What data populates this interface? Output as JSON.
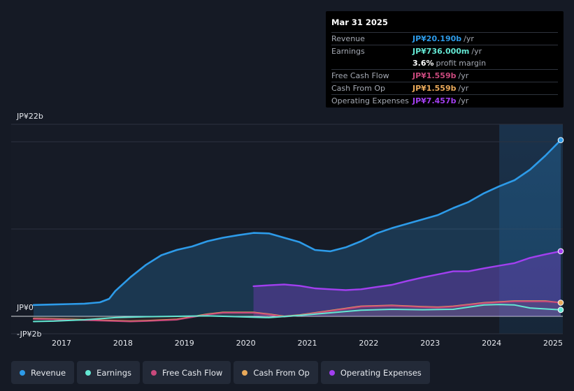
{
  "colors": {
    "revenue": "#2d9be9",
    "earnings": "#64e7d3",
    "free_cash_flow": "#c9497c",
    "cash_from_op": "#e9a95a",
    "operating_expenses": "#a23ff0"
  },
  "tooltip": {
    "date": "Mar 31 2025",
    "rows": [
      {
        "label": "Revenue",
        "value": "JP¥20.190b",
        "unit": "/yr",
        "color": "#2d9be9"
      },
      {
        "label": "Earnings",
        "value": "JP¥736.000m",
        "unit": "/yr",
        "color": "#64e7d3"
      },
      {
        "label": "",
        "value": "3.6%",
        "unit": "profit margin",
        "color": "#ffffff"
      },
      {
        "label": "Free Cash Flow",
        "value": "JP¥1.559b",
        "unit": "/yr",
        "color": "#c9497c"
      },
      {
        "label": "Cash From Op",
        "value": "JP¥1.559b",
        "unit": "/yr",
        "color": "#e9a95a"
      },
      {
        "label": "Operating Expenses",
        "value": "JP¥7.457b",
        "unit": "/yr",
        "color": "#a23ff0"
      }
    ]
  },
  "legend": [
    {
      "label": "Revenue",
      "color": "#2d9be9"
    },
    {
      "label": "Earnings",
      "color": "#64e7d3"
    },
    {
      "label": "Free Cash Flow",
      "color": "#c9497c"
    },
    {
      "label": "Cash From Op",
      "color": "#e9a95a"
    },
    {
      "label": "Operating Expenses",
      "color": "#a23ff0"
    }
  ],
  "chart_data": {
    "type": "area",
    "title": "",
    "xlabel": "",
    "ylabel": "",
    "unit": "JP¥ billions",
    "ylim": [
      -2,
      22
    ],
    "y_ticks": [
      {
        "value": 22,
        "label": "JP¥22b"
      },
      {
        "value": 0,
        "label": "JP¥0"
      },
      {
        "value": -2,
        "label": "-JP¥2b"
      }
    ],
    "xlim": [
      2016.67,
      2025.25
    ],
    "x_ticks": [
      {
        "value": 2017,
        "label": "2017"
      },
      {
        "value": 2018,
        "label": "2018"
      },
      {
        "value": 2019,
        "label": "2019"
      },
      {
        "value": 2020,
        "label": "2020"
      },
      {
        "value": 2021,
        "label": "2021"
      },
      {
        "value": 2022,
        "label": "2022"
      },
      {
        "value": 2023,
        "label": "2023"
      },
      {
        "value": 2024,
        "label": "2024"
      },
      {
        "value": 2025,
        "label": "2025"
      }
    ],
    "highlight_from": 2024.25,
    "series": [
      {
        "name": "Revenue",
        "key": "revenue",
        "x": [
          2016.67,
          2017.0,
          2017.25,
          2017.5,
          2017.75,
          2017.9,
          2018.0,
          2018.25,
          2018.5,
          2018.75,
          2019.0,
          2019.25,
          2019.5,
          2019.75,
          2020.0,
          2020.25,
          2020.5,
          2020.75,
          2021.0,
          2021.25,
          2021.5,
          2021.75,
          2022.0,
          2022.25,
          2022.5,
          2022.75,
          2023.0,
          2023.25,
          2023.5,
          2023.75,
          2024.0,
          2024.25,
          2024.5,
          2024.75,
          2025.0,
          2025.25
        ],
        "values": [
          1.3,
          1.35,
          1.4,
          1.45,
          1.6,
          2.0,
          2.9,
          4.5,
          5.9,
          7.0,
          7.6,
          8.0,
          8.6,
          9.0,
          9.3,
          9.55,
          9.5,
          9.0,
          8.5,
          7.6,
          7.45,
          7.9,
          8.6,
          9.5,
          10.1,
          10.6,
          11.1,
          11.6,
          12.4,
          13.1,
          14.1,
          14.9,
          15.6,
          16.8,
          18.4,
          20.19
        ]
      },
      {
        "name": "Earnings",
        "key": "earnings",
        "x": [
          2016.67,
          2017.0,
          2017.5,
          2018.0,
          2018.5,
          2019.0,
          2019.5,
          2020.0,
          2020.5,
          2021.0,
          2021.5,
          2022.0,
          2022.5,
          2023.0,
          2023.5,
          2024.0,
          2024.25,
          2024.5,
          2024.75,
          2025.25
        ],
        "values": [
          -0.6,
          -0.55,
          -0.4,
          -0.15,
          -0.05,
          0.0,
          0.05,
          -0.05,
          -0.15,
          0.1,
          0.4,
          0.7,
          0.8,
          0.75,
          0.8,
          1.3,
          1.35,
          1.3,
          0.95,
          0.736
        ]
      },
      {
        "name": "Free Cash Flow",
        "key": "free_cash_flow",
        "x": [
          2016.67,
          2017.0,
          2017.5,
          2018.0,
          2018.25,
          2018.5,
          2019.0,
          2019.5,
          2019.75,
          2020.0,
          2020.25,
          2020.5,
          2020.75,
          2021.0,
          2021.5,
          2022.0,
          2022.5,
          2023.0,
          2023.25,
          2023.5,
          2024.0,
          2024.5,
          2025.0,
          2025.25
        ],
        "values": [
          -0.3,
          -0.35,
          -0.45,
          -0.55,
          -0.6,
          -0.55,
          -0.4,
          0.2,
          0.4,
          0.4,
          0.4,
          0.2,
          -0.05,
          0.1,
          0.6,
          1.1,
          1.2,
          1.05,
          1.0,
          1.1,
          1.5,
          1.7,
          1.7,
          1.559
        ]
      },
      {
        "name": "Cash From Op",
        "key": "cash_from_op",
        "x": [
          2016.67,
          2017.0,
          2017.5,
          2018.0,
          2018.25,
          2018.5,
          2019.0,
          2019.5,
          2019.75,
          2020.0,
          2020.25,
          2020.5,
          2020.75,
          2021.0,
          2021.5,
          2022.0,
          2022.5,
          2023.0,
          2023.25,
          2023.5,
          2024.0,
          2024.5,
          2025.0,
          2025.25
        ],
        "values": [
          -0.25,
          -0.3,
          -0.4,
          -0.5,
          -0.55,
          -0.5,
          -0.35,
          0.25,
          0.45,
          0.45,
          0.45,
          0.25,
          0.0,
          0.15,
          0.65,
          1.15,
          1.25,
          1.1,
          1.05,
          1.15,
          1.55,
          1.75,
          1.75,
          1.559
        ]
      },
      {
        "name": "Operating Expenses",
        "key": "operating_expenses",
        "x": [
          2020.25,
          2020.5,
          2020.75,
          2021.0,
          2021.25,
          2021.5,
          2021.75,
          2022.0,
          2022.25,
          2022.5,
          2022.75,
          2023.0,
          2023.25,
          2023.5,
          2023.75,
          2024.0,
          2024.25,
          2024.5,
          2024.75,
          2025.0,
          2025.25
        ],
        "values": [
          3.45,
          3.55,
          3.65,
          3.5,
          3.2,
          3.1,
          3.0,
          3.1,
          3.35,
          3.6,
          4.05,
          4.45,
          4.8,
          5.15,
          5.15,
          5.5,
          5.8,
          6.1,
          6.7,
          7.1,
          7.457
        ]
      }
    ]
  }
}
